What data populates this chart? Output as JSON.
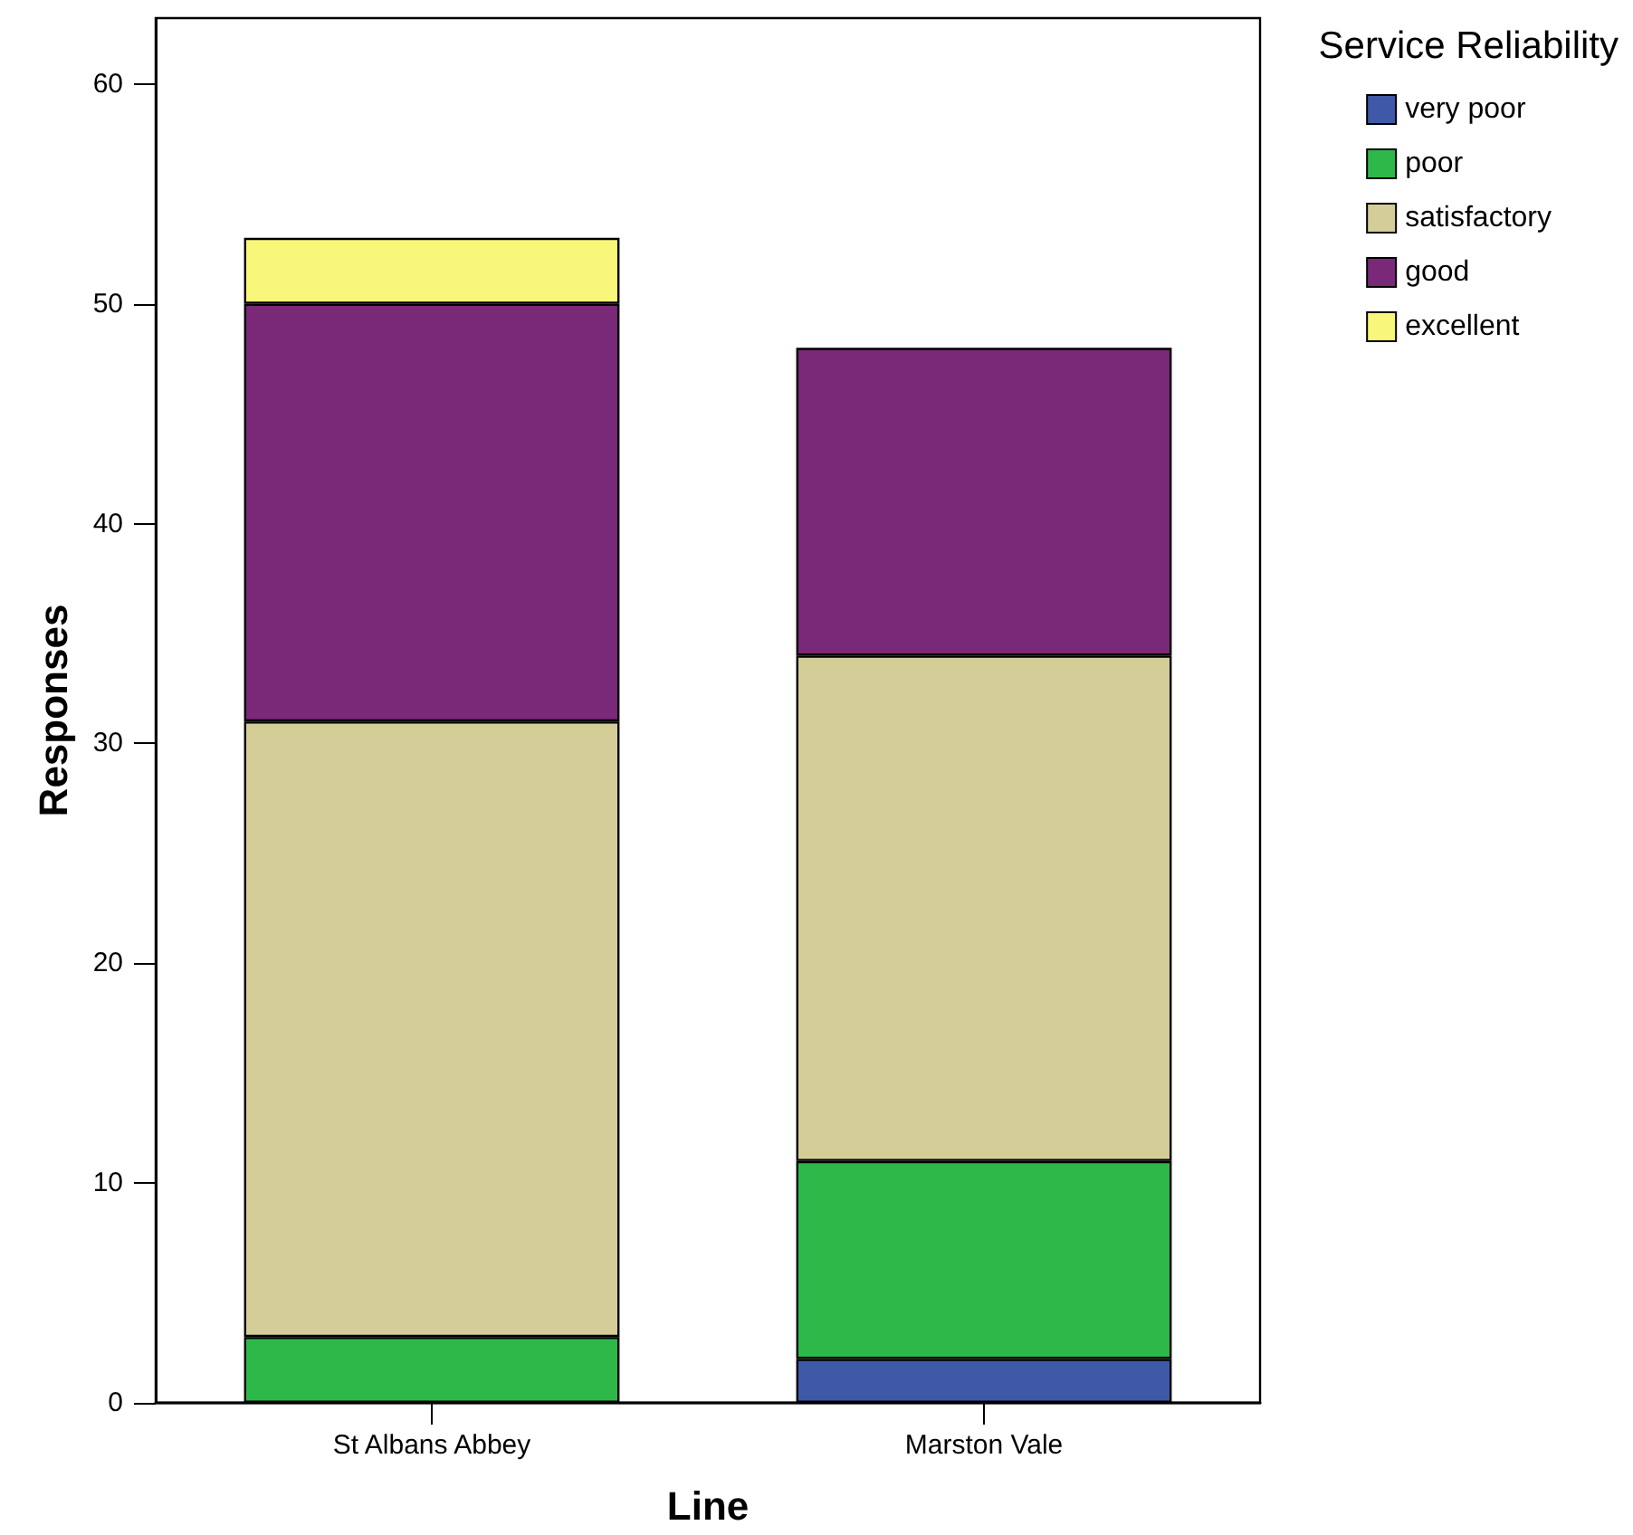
{
  "chart_data": {
    "type": "bar",
    "stacked": true,
    "xlabel": "Line",
    "ylabel": "Responses",
    "legend_title": "Service Reliability",
    "legend": "top right",
    "categories": [
      "St Albans Abbey",
      "Marston Vale"
    ],
    "series": [
      {
        "name": "very poor",
        "color": "#3f58a8",
        "values": [
          0,
          2
        ]
      },
      {
        "name": "poor",
        "color": "#2fb84a",
        "values": [
          3,
          9
        ]
      },
      {
        "name": "satisfactory",
        "color": "#d3cd98",
        "values": [
          28,
          23
        ]
      },
      {
        "name": "good",
        "color": "#7a2878",
        "values": [
          19,
          14
        ]
      },
      {
        "name": "excellent",
        "color": "#f8f77a",
        "values": [
          3,
          0
        ]
      }
    ],
    "ylim": [
      0,
      63
    ],
    "yticks": [
      0,
      10,
      20,
      30,
      40,
      50,
      60
    ]
  }
}
